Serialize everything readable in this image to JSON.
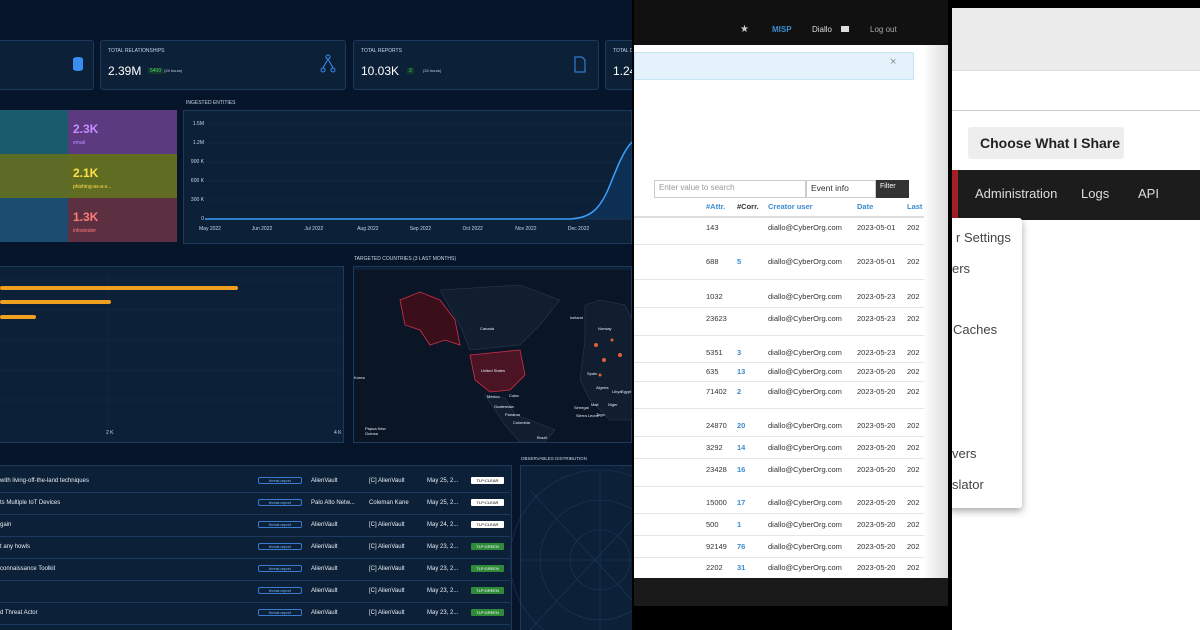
{
  "dashboard": {
    "stats": [
      {
        "title": "TOTAL RELATIONSHIPS",
        "value": "2.39M",
        "delta": "5400",
        "period": "(24 hours)"
      },
      {
        "title": "TOTAL REPORTS",
        "value": "10.03K",
        "delta": "2",
        "period": "(24 hours)"
      },
      {
        "title": "TOTAL D",
        "value": "1.24"
      }
    ],
    "treemap": [
      {
        "value": "2.3K",
        "label": "email"
      },
      {
        "value": "2.1K",
        "label": "phishing-as-a-s..."
      },
      {
        "value": "1.3K",
        "label": "infostealer"
      }
    ],
    "ingested": {
      "title": "INGESTED ENTITIES",
      "yticks": [
        "1.5M",
        "1.2M",
        "900 K",
        "600 K",
        "300 K",
        "0"
      ],
      "xticks": [
        "May 2022",
        "Jun 2022",
        "Jul 2022",
        "Aug 2022",
        "Sep 2022",
        "Oct 2022",
        "Nov 2022",
        "Dec 2022"
      ]
    },
    "bars_axis": [
      "2 K",
      "4 K"
    ],
    "map": {
      "title": "TARGETED COUNTRIES (3 LAST MONTHS)",
      "labels": [
        "Canada",
        "Iceland",
        "United States",
        "Mexico",
        "Cuba",
        "Guatemala",
        "Panama",
        "Colombia",
        "Brazil",
        "Papua New Guinea",
        "Korea",
        "Norway",
        "Spain",
        "Algeria",
        "Libya",
        "Egypt",
        "Senegal",
        "Mali",
        "Niger",
        "Sierra Leone",
        "Togo"
      ]
    },
    "reports": [
      {
        "title": "with living-off-the-land techniques",
        "type": "threat-report",
        "author": "AlienVault",
        "creator": "[C] AlienVault",
        "date": "May 25, 2...",
        "tlp": "TLP:CLEAR"
      },
      {
        "title": "ts Multiple IoT Devices",
        "type": "threat-report",
        "author": "Palo Alto Netw...",
        "creator": "Coleman Kane",
        "date": "May 25, 2...",
        "tlp": "TLP:CLEAR"
      },
      {
        "title": "gain",
        "type": "threat-report",
        "author": "AlienVault",
        "creator": "[C] AlienVault",
        "date": "May 24, 2...",
        "tlp": "TLP:CLEAR"
      },
      {
        "title": "t any howls",
        "type": "threat-report",
        "author": "AlienVault",
        "creator": "[C] AlienVault",
        "date": "May 23, 2...",
        "tlp": "TLP:GREEN"
      },
      {
        "title": "connaissance Toolkit",
        "type": "threat-report",
        "author": "AlienVault",
        "creator": "[C] AlienVault",
        "date": "May 23, 2...",
        "tlp": "TLP:GREEN"
      },
      {
        "type": "threat-report",
        "author": "AlienVault",
        "creator": "[C] AlienVault",
        "date": "May 23, 2...",
        "tlp": "TLP:GREEN"
      },
      {
        "title": "d Threat Actor",
        "type": "threat-report",
        "author": "AlienVault",
        "creator": "[C] AlienVault",
        "date": "May 23, 2...",
        "tlp": "TLP:GREEN"
      }
    ],
    "observables_title": "OBSERVABLES DISTRIBUTION"
  },
  "misp": {
    "nav": {
      "brand": "MISP",
      "user": "Diallo",
      "logout": "Log out"
    },
    "close": "×",
    "search_placeholder": "Enter value to search",
    "select": "Event info",
    "filter": "Filter",
    "columns": [
      "#Attr.",
      "#Corr.",
      "Creator user",
      "Date",
      "Last"
    ],
    "rows": [
      {
        "attr": "143",
        "creator": "diallo@CyberOrg.com",
        "date": "2023-05-01",
        "last": "202"
      },
      {
        "attr": "688",
        "corr": "5",
        "creator": "diallo@CyberOrg.com",
        "date": "2023-05-01",
        "last": "202"
      },
      {
        "attr": "1032",
        "creator": "diallo@CyberOrg.com",
        "date": "2023-05-23",
        "last": "202"
      },
      {
        "attr": "23623",
        "creator": "diallo@CyberOrg.com",
        "date": "2023-05-23",
        "last": "202"
      },
      {
        "attr": "5351",
        "corr": "3",
        "creator": "diallo@CyberOrg.com",
        "date": "2023-05-23",
        "last": "202"
      },
      {
        "attr": "635",
        "corr": "13",
        "creator": "diallo@CyberOrg.com",
        "date": "2023-05-20",
        "last": "202"
      },
      {
        "attr": "71402",
        "corr": "2",
        "creator": "diallo@CyberOrg.com",
        "date": "2023-05-20",
        "last": "202"
      },
      {
        "attr": "24870",
        "corr": "20",
        "creator": "diallo@CyberOrg.com",
        "date": "2023-05-20",
        "last": "202"
      },
      {
        "attr": "3292",
        "corr": "14",
        "creator": "diallo@CyberOrg.com",
        "date": "2023-05-20",
        "last": "202"
      },
      {
        "attr": "23428",
        "corr": "16",
        "creator": "diallo@CyberOrg.com",
        "date": "2023-05-20",
        "last": "202"
      },
      {
        "attr": "15000",
        "corr": "17",
        "creator": "diallo@CyberOrg.com",
        "date": "2023-05-20",
        "last": "202"
      },
      {
        "attr": "500",
        "corr": "1",
        "creator": "diallo@CyberOrg.com",
        "date": "2023-05-20",
        "last": "202"
      },
      {
        "attr": "92149",
        "corr": "76",
        "creator": "diallo@CyberOrg.com",
        "date": "2023-05-20",
        "last": "202"
      },
      {
        "attr": "2202",
        "corr": "31",
        "creator": "diallo@CyberOrg.com",
        "date": "2023-05-20",
        "last": "202"
      }
    ]
  },
  "share": {
    "button": "Choose What I Share",
    "nav": [
      "Administration",
      "Logs",
      "API"
    ],
    "menu": [
      "r Settings",
      "ers",
      "Caches",
      "vers",
      "slator"
    ]
  }
}
